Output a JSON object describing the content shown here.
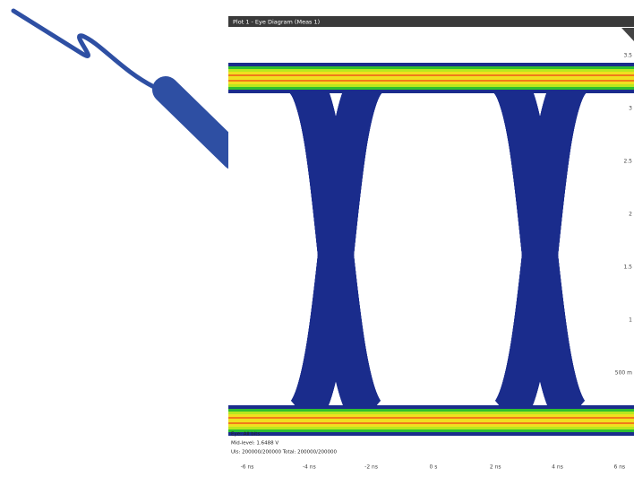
{
  "window": {
    "title": "Plot 1 - Eye Diagram (Meas 1)"
  },
  "plot": {
    "y_labels": [
      "3.5",
      "3",
      "2.5",
      "2",
      "1.5",
      "1",
      "500 m"
    ],
    "x_labels": [
      "-6 ns",
      "-4 ns",
      "-2 ns",
      "0 s",
      "2 ns",
      "4 ns",
      "6 ns"
    ],
    "info": [
      "Eye: All bits",
      "Mid-level: 1.6488 V",
      "UIs: 200000/200000  Total: 200000/200000"
    ]
  }
}
